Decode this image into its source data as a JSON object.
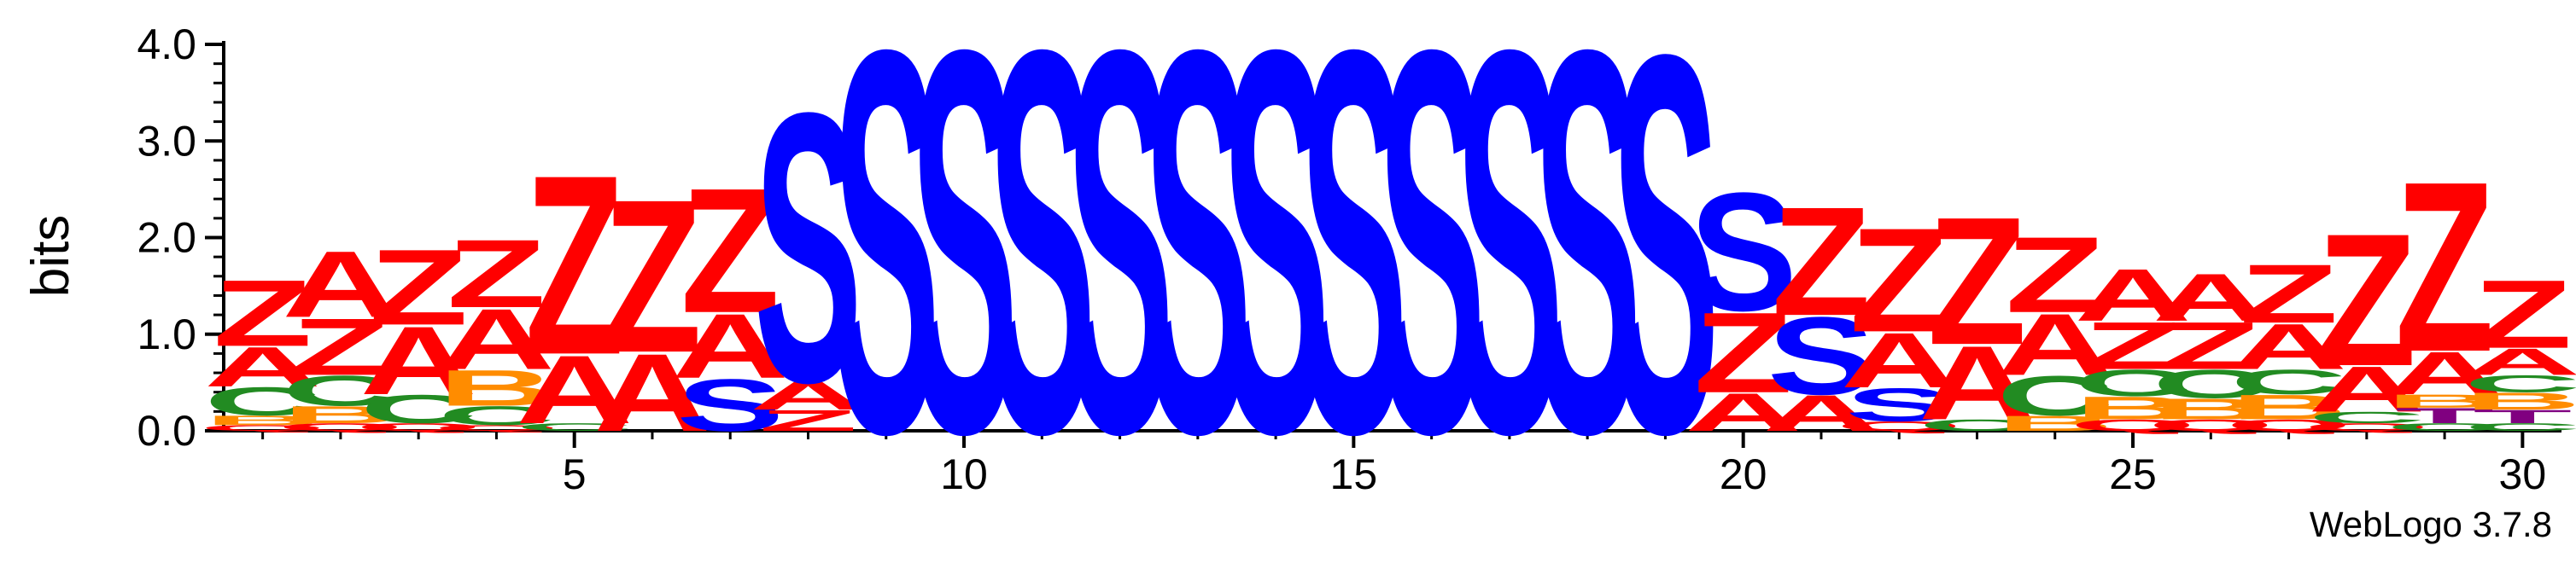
{
  "chart_data": {
    "type": "sequence-logo",
    "ylabel": "bits",
    "ylim": [
      0,
      4.0
    ],
    "yticks": [
      "0.0",
      "1.0",
      "2.0",
      "3.0",
      "4.0"
    ],
    "xticks": [
      5,
      10,
      15,
      20,
      25,
      30
    ],
    "positions": [
      1,
      30
    ],
    "credit": "WebLogo 3.7.8",
    "colors": {
      "S": "#0000ff",
      "Z": "#ff0000",
      "A": "#ff0000",
      "C": "#228b22",
      "B": "#ff8c00",
      "Q": "#ff0000",
      "T": "#800080"
    },
    "columns": [
      {
        "pos": 1,
        "letters": [
          [
            "Q",
            0.06
          ],
          [
            "B",
            0.1
          ],
          [
            "C",
            0.3
          ],
          [
            "A",
            0.42
          ],
          [
            "Z",
            0.7
          ]
        ]
      },
      {
        "pos": 2,
        "letters": [
          [
            "Q",
            0.08
          ],
          [
            "B",
            0.18
          ],
          [
            "C",
            0.32
          ],
          [
            "Z",
            0.6
          ],
          [
            "A",
            0.7
          ]
        ]
      },
      {
        "pos": 3,
        "letters": [
          [
            "Q",
            0.08
          ],
          [
            "C",
            0.3
          ],
          [
            "A",
            0.72
          ],
          [
            "Z",
            0.8
          ]
        ]
      },
      {
        "pos": 4,
        "letters": [
          [
            "Q",
            0.06
          ],
          [
            "C",
            0.2
          ],
          [
            "B",
            0.38
          ],
          [
            "A",
            0.64
          ],
          [
            "Z",
            0.72
          ]
        ]
      },
      {
        "pos": 5,
        "letters": [
          [
            "C",
            0.08
          ],
          [
            "A",
            0.72
          ],
          [
            "Z",
            1.9
          ]
        ]
      },
      {
        "pos": 6,
        "letters": [
          [
            "A",
            0.82
          ],
          [
            "Z",
            1.62
          ]
        ]
      },
      {
        "pos": 7,
        "letters": [
          [
            "S",
            0.55
          ],
          [
            "A",
            0.68
          ],
          [
            "Z",
            1.32
          ]
        ]
      },
      {
        "pos": 8,
        "letters": [
          [
            "Z",
            0.22
          ],
          [
            "A",
            0.3
          ],
          [
            "S",
            2.85
          ]
        ]
      },
      {
        "pos": 9,
        "letters": [
          [
            "S",
            4.05
          ]
        ]
      },
      {
        "pos": 10,
        "letters": [
          [
            "S",
            4.05
          ]
        ]
      },
      {
        "pos": 11,
        "letters": [
          [
            "S",
            4.05
          ]
        ]
      },
      {
        "pos": 12,
        "letters": [
          [
            "S",
            4.05
          ]
        ]
      },
      {
        "pos": 13,
        "letters": [
          [
            "S",
            4.05
          ]
        ]
      },
      {
        "pos": 14,
        "letters": [
          [
            "S",
            4.05
          ]
        ]
      },
      {
        "pos": 15,
        "letters": [
          [
            "S",
            4.05
          ]
        ]
      },
      {
        "pos": 16,
        "letters": [
          [
            "S",
            4.05
          ]
        ]
      },
      {
        "pos": 17,
        "letters": [
          [
            "S",
            4.05
          ]
        ]
      },
      {
        "pos": 18,
        "letters": [
          [
            "S",
            4.05
          ]
        ]
      },
      {
        "pos": 19,
        "letters": [
          [
            "S",
            4.0
          ]
        ]
      },
      {
        "pos": 20,
        "letters": [
          [
            "A",
            0.4
          ],
          [
            "Z",
            0.85
          ],
          [
            "S",
            1.25
          ]
        ]
      },
      {
        "pos": 21,
        "letters": [
          [
            "A",
            0.38
          ],
          [
            "S",
            0.82
          ],
          [
            "Z",
            1.15
          ]
        ]
      },
      {
        "pos": 22,
        "letters": [
          [
            "Q",
            0.1
          ],
          [
            "S",
            0.35
          ],
          [
            "A",
            0.58
          ],
          [
            "Z",
            1.1
          ]
        ]
      },
      {
        "pos": 23,
        "letters": [
          [
            "C",
            0.12
          ],
          [
            "A",
            0.78
          ],
          [
            "Z",
            1.35
          ]
        ]
      },
      {
        "pos": 24,
        "letters": [
          [
            "B",
            0.16
          ],
          [
            "C",
            0.42
          ],
          [
            "A",
            0.65
          ],
          [
            "Z",
            0.8
          ]
        ]
      },
      {
        "pos": 25,
        "letters": [
          [
            "Q",
            0.12
          ],
          [
            "B",
            0.24
          ],
          [
            "C",
            0.28
          ],
          [
            "Z",
            0.5
          ],
          [
            "A",
            0.55
          ]
        ]
      },
      {
        "pos": 26,
        "letters": [
          [
            "Q",
            0.12
          ],
          [
            "B",
            0.22
          ],
          [
            "C",
            0.3
          ],
          [
            "Z",
            0.5
          ],
          [
            "A",
            0.5
          ]
        ]
      },
      {
        "pos": 27,
        "letters": [
          [
            "Q",
            0.12
          ],
          [
            "B",
            0.26
          ],
          [
            "C",
            0.26
          ],
          [
            "A",
            0.48
          ],
          [
            "Z",
            0.62
          ]
        ]
      },
      {
        "pos": 28,
        "letters": [
          [
            "Q",
            0.08
          ],
          [
            "C",
            0.12
          ],
          [
            "A",
            0.48
          ],
          [
            "Z",
            1.4
          ]
        ]
      },
      {
        "pos": 29,
        "letters": [
          [
            "C",
            0.08
          ],
          [
            "T",
            0.16
          ],
          [
            "B",
            0.14
          ],
          [
            "A",
            0.45
          ],
          [
            "Z",
            1.8
          ]
        ]
      },
      {
        "pos": 30,
        "letters": [
          [
            "C",
            0.08
          ],
          [
            "T",
            0.14
          ],
          [
            "B",
            0.18
          ],
          [
            "C",
            0.18
          ],
          [
            "A",
            0.28
          ],
          [
            "Z",
            0.72
          ]
        ]
      }
    ]
  }
}
